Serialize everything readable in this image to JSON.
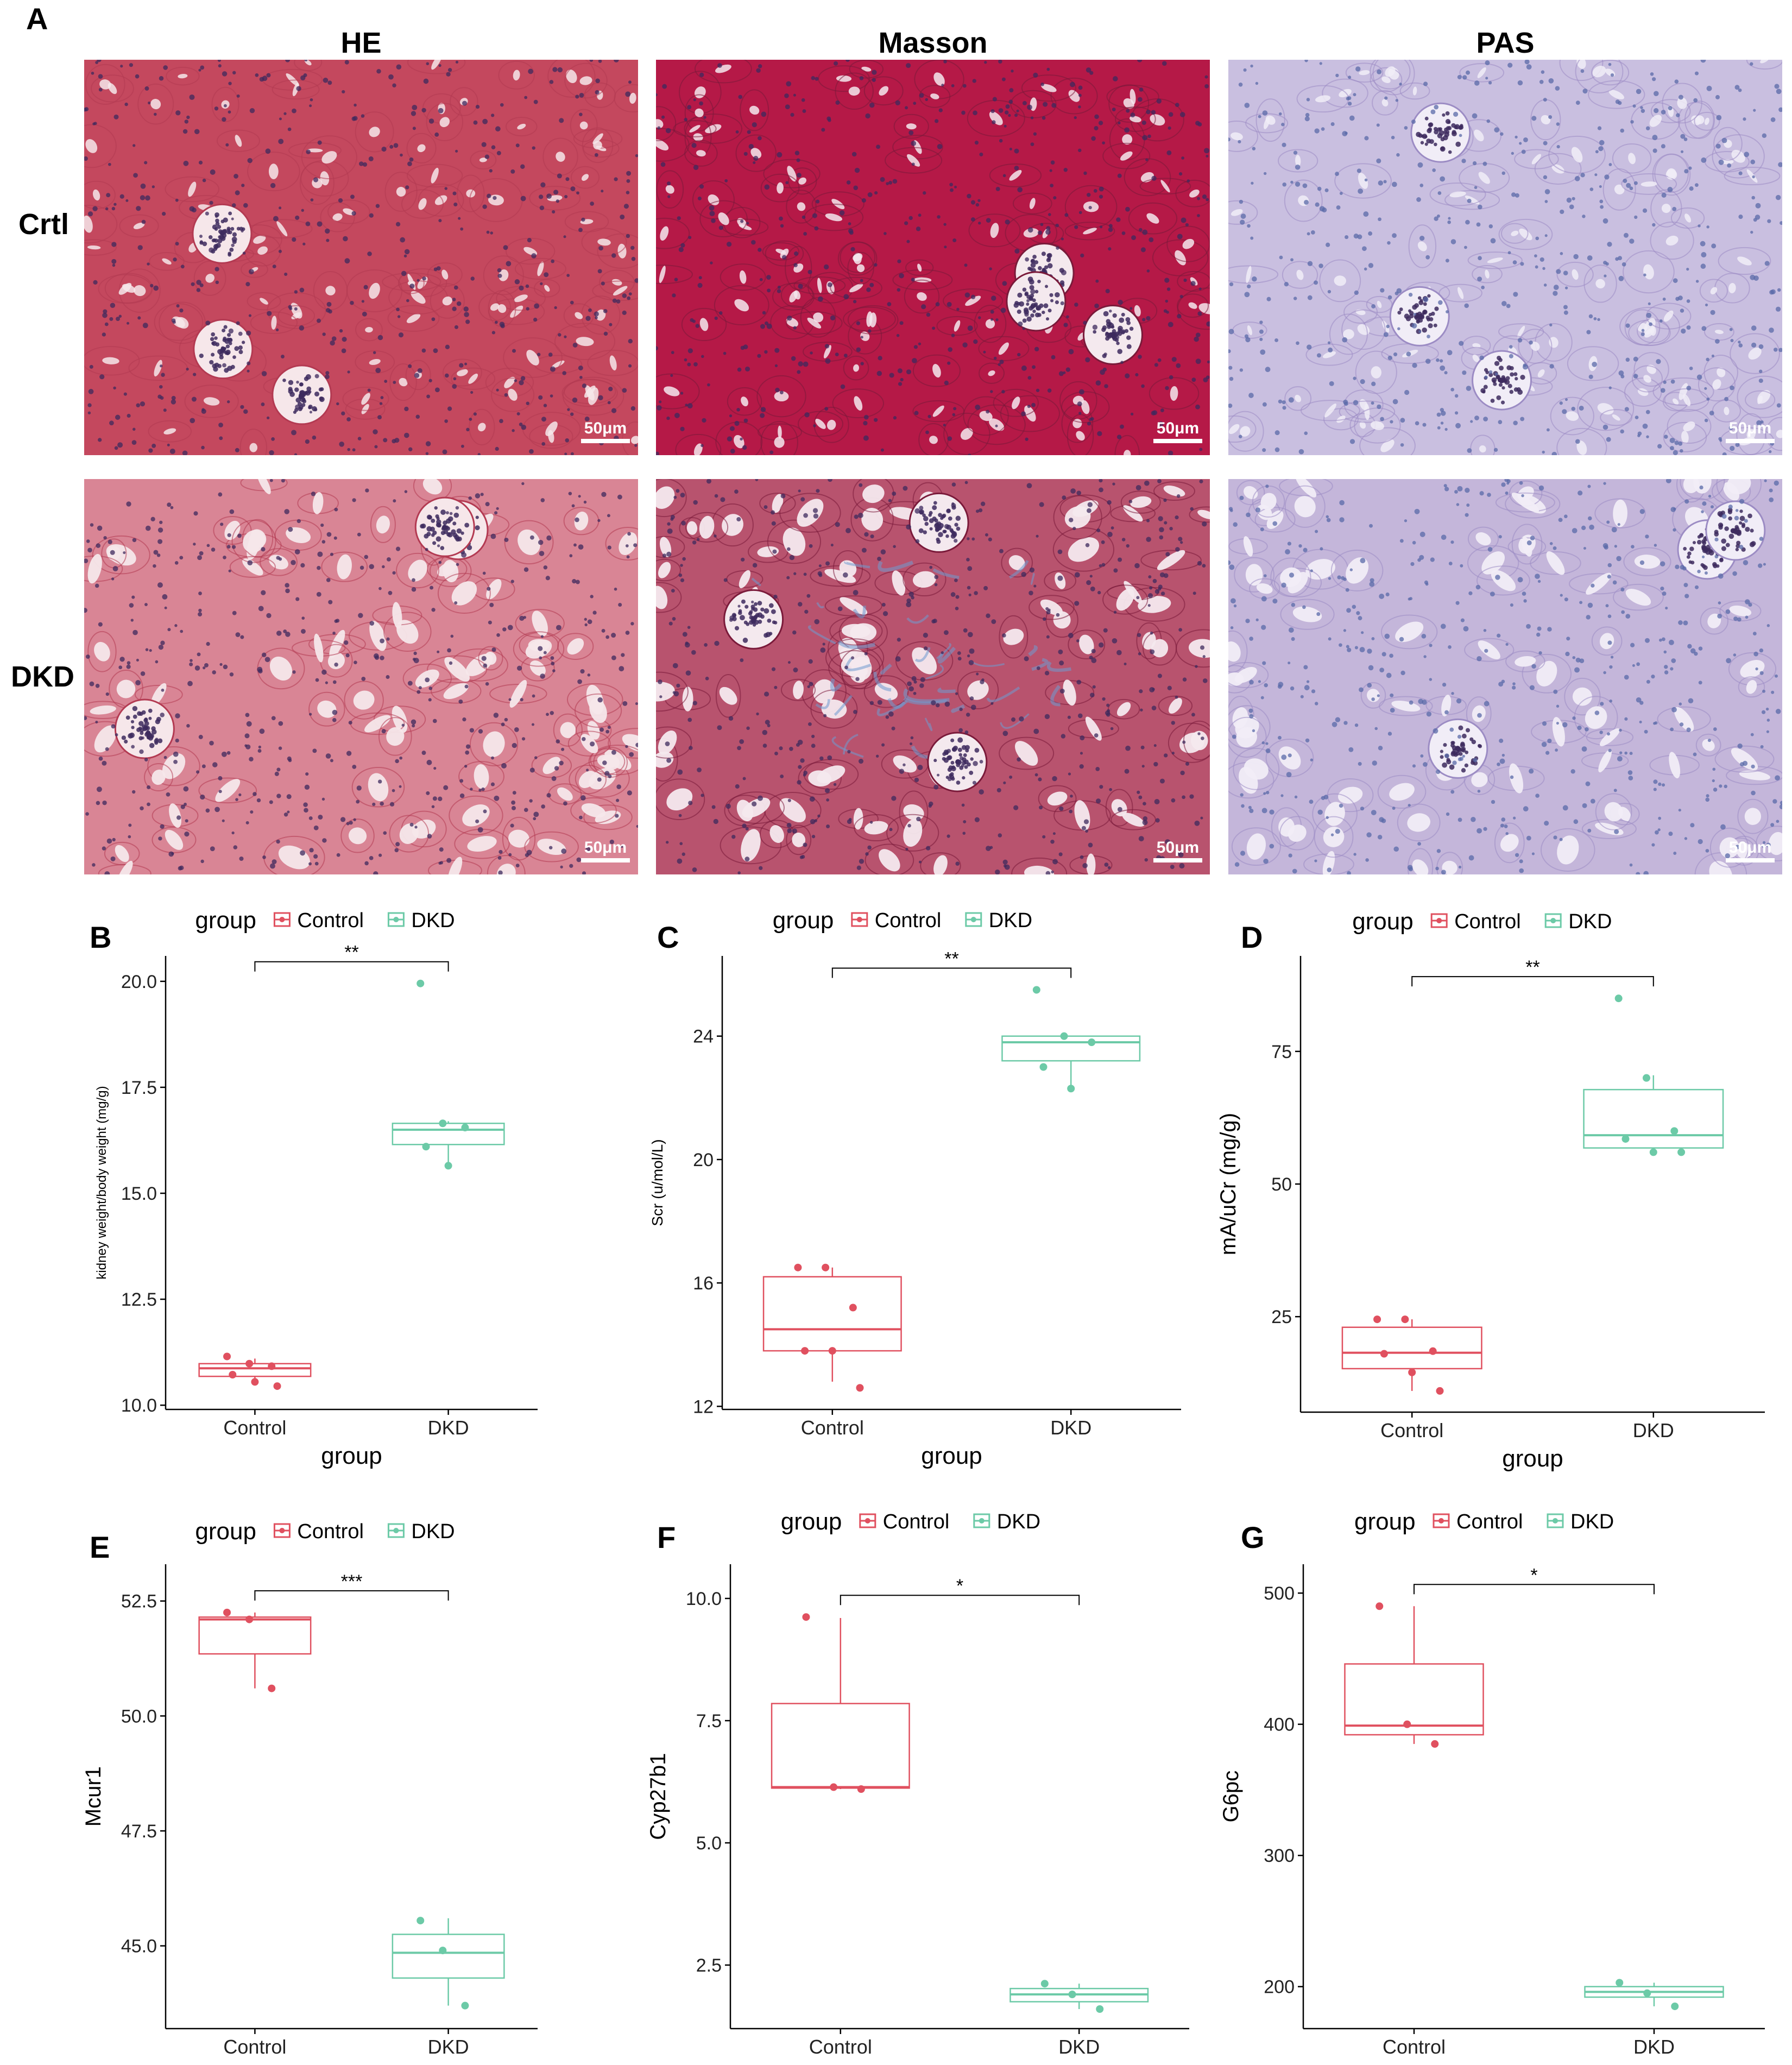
{
  "panel_a": {
    "letter": "A",
    "columns": [
      "HE",
      "Masson",
      "PAS"
    ],
    "rows": [
      "Crtl",
      "DKD"
    ],
    "scale_bar_label": "50μm",
    "stain_colors": {
      "HE_crtl": "#c4485e",
      "HE_dkd": "#d98595",
      "Masson_crtl": "#b51947",
      "Masson_dkd": "#b8536e",
      "PAS_crtl": "#c9bfe0",
      "PAS_dkd": "#c4b6da",
      "nucleus": "#3d2a5e"
    }
  },
  "colors": {
    "control": "#e0505f",
    "dkd": "#6ccaa7"
  },
  "chart_data": [
    {
      "letter": "B",
      "type": "box",
      "legend": {
        "title": "group",
        "entries": [
          "Control",
          "DKD"
        ],
        "placement": "top"
      },
      "xlabel": "group",
      "ylabel": "kidney weight/body weight (mg/g)",
      "categories": [
        "Control",
        "DKD"
      ],
      "ylim": [
        9.9,
        20.6
      ],
      "yticks": [
        10.0,
        12.5,
        15.0,
        17.5,
        20.0
      ],
      "boxes": [
        {
          "q1": 10.68,
          "median": 10.87,
          "q3": 10.98,
          "whisker_low": 10.55,
          "whisker_high": 11.1,
          "points": [
            11.15,
            10.98,
            10.92,
            10.72,
            10.55,
            10.45
          ]
        },
        {
          "q1": 16.15,
          "median": 16.5,
          "q3": 16.65,
          "whisker_low": 15.6,
          "whisker_high": 16.7,
          "points": [
            19.95,
            16.65,
            16.55,
            16.1,
            15.65
          ]
        }
      ],
      "significance": "**"
    },
    {
      "letter": "C",
      "type": "box",
      "legend": {
        "title": "group",
        "entries": [
          "Control",
          "DKD"
        ],
        "placement": "top"
      },
      "xlabel": "group",
      "ylabel": "Scr (u/mol/L)",
      "categories": [
        "Control",
        "DKD"
      ],
      "ylim": [
        11.9,
        26.6
      ],
      "yticks": [
        12,
        16,
        20,
        24
      ],
      "boxes": [
        {
          "q1": 13.8,
          "median": 14.5,
          "q3": 16.2,
          "whisker_low": 12.8,
          "whisker_high": 16.5,
          "points": [
            16.5,
            16.5,
            15.2,
            13.8,
            13.8,
            12.6
          ]
        },
        {
          "q1": 23.2,
          "median": 23.8,
          "q3": 24.0,
          "whisker_low": 22.2,
          "whisker_high": 24.0,
          "points": [
            25.5,
            24.0,
            23.8,
            23.0,
            22.3
          ]
        }
      ],
      "significance": "**"
    },
    {
      "letter": "D",
      "type": "box",
      "legend": {
        "title": "group",
        "entries": [
          "Control",
          "DKD"
        ],
        "placement": "top"
      },
      "xlabel": "group",
      "ylabel": "mA/uCr (mg/g)",
      "categories": [
        "Control",
        "DKD"
      ],
      "ylim": [
        7,
        93
      ],
      "yticks": [
        25,
        50,
        75
      ],
      "boxes": [
        {
          "q1": 15.2,
          "median": 18.2,
          "q3": 23.0,
          "whisker_low": 11,
          "whisker_high": 24.5,
          "points": [
            24.5,
            24.5,
            18.5,
            18.0,
            14.5,
            11.0
          ]
        },
        {
          "q1": 56.8,
          "median": 59.2,
          "q3": 67.8,
          "whisker_low": 56.0,
          "whisker_high": 70.5,
          "points": [
            85.0,
            70.0,
            60.0,
            58.5,
            56.0,
            56.0
          ]
        }
      ],
      "significance": "**"
    },
    {
      "letter": "E",
      "type": "box",
      "legend": {
        "title": "group",
        "entries": [
          "Control",
          "DKD"
        ],
        "placement": "top"
      },
      "xlabel": "group",
      "ylabel": "Mcur1",
      "categories": [
        "Control",
        "DKD"
      ],
      "ylim": [
        43.2,
        53.3
      ],
      "yticks": [
        45.0,
        47.5,
        50.0,
        52.5
      ],
      "boxes": [
        {
          "q1": 51.35,
          "median": 52.1,
          "q3": 52.15,
          "whisker_low": 50.6,
          "whisker_high": 52.25,
          "points": [
            52.25,
            52.1,
            50.6
          ]
        },
        {
          "q1": 44.3,
          "median": 44.85,
          "q3": 45.25,
          "whisker_low": 43.7,
          "whisker_high": 45.6,
          "points": [
            45.55,
            44.9,
            43.7
          ]
        }
      ],
      "significance": "***"
    },
    {
      "letter": "F",
      "type": "box",
      "legend": {
        "title": "group",
        "entries": [
          "Control",
          "DKD"
        ],
        "placement": "top"
      },
      "xlabel": "group",
      "ylabel": "Cyp27b1",
      "categories": [
        "Control",
        "DKD"
      ],
      "ylim": [
        1.2,
        10.7
      ],
      "yticks": [
        2.5,
        5.0,
        7.5,
        10.0
      ],
      "boxes": [
        {
          "q1": 6.12,
          "median": 6.14,
          "q3": 7.85,
          "whisker_low": 6.1,
          "whisker_high": 9.6,
          "points": [
            9.62,
            6.14,
            6.1
          ]
        },
        {
          "q1": 1.75,
          "median": 1.9,
          "q3": 2.02,
          "whisker_low": 1.6,
          "whisker_high": 2.12,
          "points": [
            2.12,
            1.9,
            1.6
          ]
        }
      ],
      "significance": "*"
    },
    {
      "letter": "G",
      "type": "box",
      "legend": {
        "title": "group",
        "entries": [
          "Control",
          "DKD"
        ],
        "placement": "top"
      },
      "xlabel": "group",
      "ylabel": "G6pc",
      "categories": [
        "Control",
        "DKD"
      ],
      "ylim": [
        168,
        522
      ],
      "yticks": [
        200,
        300,
        400,
        500
      ],
      "boxes": [
        {
          "q1": 392,
          "median": 399,
          "q3": 446,
          "whisker_low": 385,
          "whisker_high": 490,
          "points": [
            490,
            400,
            385
          ]
        },
        {
          "q1": 192,
          "median": 196,
          "q3": 200,
          "whisker_low": 185,
          "whisker_high": 203,
          "points": [
            203,
            195,
            185
          ]
        }
      ],
      "significance": "*"
    }
  ]
}
